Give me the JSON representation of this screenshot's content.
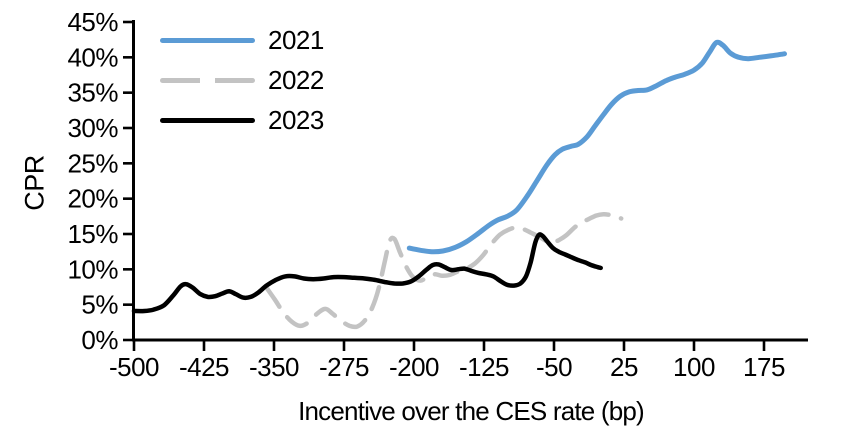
{
  "figure": {
    "background": "#FFFFFF",
    "text_color": "#000000",
    "axis_color": "#000000"
  },
  "chart_data": {
    "type": "line",
    "title": "",
    "xlabel": "Incentive over the CES rate (bp)",
    "ylabel": "CPR",
    "xlim": [
      -500,
      220
    ],
    "ylim": [
      0,
      45
    ],
    "grid": false,
    "legend_position": "top-left-inside",
    "x_ticks": [
      -500,
      -425,
      -350,
      -275,
      -200,
      -125,
      -50,
      25,
      100,
      175
    ],
    "x_tick_labels": [
      "-500",
      "-425",
      "-350",
      "-275",
      "-200",
      "-125",
      "-50",
      "25",
      "100",
      "175"
    ],
    "y_ticks": [
      0,
      5,
      10,
      15,
      20,
      25,
      30,
      35,
      40,
      45
    ],
    "y_tick_labels": [
      "0%",
      "5%",
      "10%",
      "15%",
      "20%",
      "25%",
      "30%",
      "35%",
      "40%",
      "45%"
    ],
    "series": [
      {
        "name": "2021",
        "color": "#5B9BD5",
        "line_style": "solid",
        "points": [
          [
            -205,
            13.0
          ],
          [
            -193,
            12.7
          ],
          [
            -181,
            12.5
          ],
          [
            -169,
            12.6
          ],
          [
            -156,
            13.1
          ],
          [
            -144,
            13.9
          ],
          [
            -131,
            15.1
          ],
          [
            -120,
            16.2
          ],
          [
            -110,
            17.0
          ],
          [
            -100,
            17.5
          ],
          [
            -90,
            18.4
          ],
          [
            -79,
            20.3
          ],
          [
            -68,
            22.6
          ],
          [
            -58,
            24.7
          ],
          [
            -49,
            26.2
          ],
          [
            -41,
            27.0
          ],
          [
            -32,
            27.4
          ],
          [
            -24,
            27.7
          ],
          [
            -15,
            28.7
          ],
          [
            -6,
            30.3
          ],
          [
            3,
            31.9
          ],
          [
            12,
            33.4
          ],
          [
            21,
            34.5
          ],
          [
            30,
            35.1
          ],
          [
            40,
            35.3
          ],
          [
            50,
            35.4
          ],
          [
            60,
            36.0
          ],
          [
            70,
            36.7
          ],
          [
            80,
            37.2
          ],
          [
            90,
            37.6
          ],
          [
            100,
            38.2
          ],
          [
            109,
            39.2
          ],
          [
            117,
            40.8
          ],
          [
            124,
            42.1
          ],
          [
            131,
            41.7
          ],
          [
            139,
            40.6
          ],
          [
            148,
            40.0
          ],
          [
            158,
            39.8
          ],
          [
            170,
            40.0
          ],
          [
            182,
            40.2
          ],
          [
            197,
            40.5
          ]
        ]
      },
      {
        "name": "2022",
        "color": "#C3C3C3",
        "line_style": "dashed",
        "points": [
          [
            -358,
            7.4
          ],
          [
            -349,
            5.7
          ],
          [
            -340,
            3.9
          ],
          [
            -331,
            2.6
          ],
          [
            -322,
            2.0
          ],
          [
            -313,
            2.5
          ],
          [
            -304,
            3.7
          ],
          [
            -295,
            4.4
          ],
          [
            -287,
            3.7
          ],
          [
            -278,
            2.7
          ],
          [
            -269,
            2.0
          ],
          [
            -261,
            1.9
          ],
          [
            -253,
            2.7
          ],
          [
            -245,
            4.5
          ],
          [
            -238,
            7.2
          ],
          [
            -231,
            11.3
          ],
          [
            -226,
            14.0
          ],
          [
            -221,
            14.3
          ],
          [
            -215,
            12.4
          ],
          [
            -208,
            10.3
          ],
          [
            -201,
            8.9
          ],
          [
            -193,
            8.4
          ],
          [
            -186,
            8.9
          ],
          [
            -178,
            9.3
          ],
          [
            -170,
            9.1
          ],
          [
            -162,
            9.2
          ],
          [
            -153,
            9.7
          ],
          [
            -144,
            10.1
          ],
          [
            -135,
            10.8
          ],
          [
            -126,
            12.0
          ],
          [
            -117,
            13.6
          ],
          [
            -108,
            14.9
          ],
          [
            -99,
            15.6
          ],
          [
            -91,
            15.9
          ],
          [
            -83,
            15.7
          ],
          [
            -75,
            15.2
          ],
          [
            -66,
            14.6
          ],
          [
            -58,
            14.0
          ],
          [
            -51,
            13.8
          ],
          [
            -44,
            14.2
          ],
          [
            -37,
            14.8
          ],
          [
            -29,
            15.8
          ],
          [
            -21,
            16.6
          ],
          [
            -13,
            17.1
          ],
          [
            -5,
            17.6
          ],
          [
            3,
            17.8
          ],
          [
            10,
            17.7
          ],
          [
            16,
            17.5
          ],
          [
            22,
            17.2
          ]
        ]
      },
      {
        "name": "2023",
        "color": "#000000",
        "line_style": "solid",
        "points": [
          [
            -500,
            4.1
          ],
          [
            -489,
            4.1
          ],
          [
            -479,
            4.3
          ],
          [
            -468,
            4.9
          ],
          [
            -458,
            6.3
          ],
          [
            -450,
            7.6
          ],
          [
            -444,
            7.9
          ],
          [
            -437,
            7.4
          ],
          [
            -429,
            6.5
          ],
          [
            -421,
            6.1
          ],
          [
            -413,
            6.2
          ],
          [
            -405,
            6.6
          ],
          [
            -398,
            6.9
          ],
          [
            -391,
            6.5
          ],
          [
            -383,
            6.0
          ],
          [
            -375,
            6.1
          ],
          [
            -367,
            6.7
          ],
          [
            -358,
            7.7
          ],
          [
            -348,
            8.5
          ],
          [
            -338,
            9.0
          ],
          [
            -328,
            9.0
          ],
          [
            -318,
            8.7
          ],
          [
            -308,
            8.6
          ],
          [
            -297,
            8.7
          ],
          [
            -286,
            8.9
          ],
          [
            -275,
            8.9
          ],
          [
            -264,
            8.8
          ],
          [
            -253,
            8.7
          ],
          [
            -242,
            8.5
          ],
          [
            -231,
            8.2
          ],
          [
            -221,
            8.0
          ],
          [
            -212,
            8.0
          ],
          [
            -203,
            8.3
          ],
          [
            -195,
            9.0
          ],
          [
            -187,
            9.9
          ],
          [
            -180,
            10.6
          ],
          [
            -174,
            10.7
          ],
          [
            -167,
            10.3
          ],
          [
            -160,
            9.9
          ],
          [
            -153,
            10.0
          ],
          [
            -146,
            10.1
          ],
          [
            -139,
            9.8
          ],
          [
            -131,
            9.5
          ],
          [
            -123,
            9.3
          ],
          [
            -115,
            9.0
          ],
          [
            -107,
            8.3
          ],
          [
            -100,
            7.8
          ],
          [
            -93,
            7.7
          ],
          [
            -86,
            8.0
          ],
          [
            -80,
            9.0
          ],
          [
            -75,
            11.0
          ],
          [
            -70,
            13.8
          ],
          [
            -66,
            14.9
          ],
          [
            -62,
            14.7
          ],
          [
            -57,
            13.9
          ],
          [
            -51,
            13.0
          ],
          [
            -45,
            12.5
          ],
          [
            -38,
            12.1
          ],
          [
            -31,
            11.7
          ],
          [
            -24,
            11.3
          ],
          [
            -17,
            11.0
          ],
          [
            -10,
            10.6
          ],
          [
            -3,
            10.3
          ],
          [
            0,
            10.2
          ]
        ]
      }
    ]
  }
}
